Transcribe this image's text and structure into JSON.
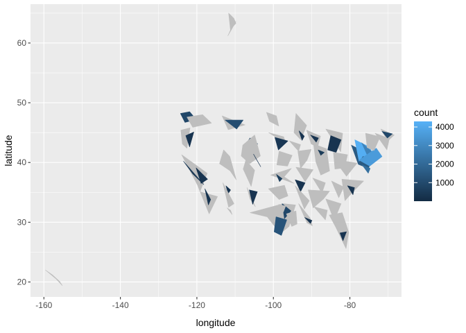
{
  "chart_data": {
    "type": "map",
    "xlabel": "longitude",
    "ylabel": "latitude",
    "xlim": [
      -163.5,
      -66.5
    ],
    "ylim": [
      17.5,
      66.5
    ],
    "x_ticks": [
      -160,
      -140,
      -120,
      -100,
      -80
    ],
    "y_ticks": [
      20,
      30,
      40,
      50,
      60
    ],
    "x_tick_labels": [
      "-160",
      "-140",
      "-120",
      "-100",
      "-80"
    ],
    "y_tick_labels": [
      "20",
      "30",
      "40",
      "50",
      "60"
    ],
    "grid": true,
    "legend": {
      "title": "count",
      "position": "right",
      "range": [
        1,
        4300
      ],
      "ticks": [
        1000,
        2000,
        3000,
        4000
      ],
      "tick_labels": [
        "1000",
        "2000",
        "3000",
        "4000"
      ],
      "low_color": "#132B43",
      "high_color": "#56B1F7"
    },
    "background_color": "#EBEBEB",
    "grid_color": "#FFFFFF",
    "na_color": "#BEBEBE",
    "shapes": [
      {
        "lon": [
          -111.7,
          -110.3,
          -109.8,
          -110.5,
          -111.2
        ],
        "lat": [
          65.0,
          64.1,
          63.3,
          62.8,
          62.0
        ],
        "count": null
      },
      {
        "lon": [
          -109.8,
          -110.9,
          -111.9
        ],
        "lat": [
          63.6,
          62.6,
          61.2
        ],
        "count": null
      },
      {
        "lon": [
          -159.6,
          -157.8,
          -155.9,
          -155.2,
          -156.8
        ],
        "lat": [
          22.0,
          21.2,
          20.1,
          19.4,
          20.5
        ],
        "count": null
      },
      {
        "lon": [
          -124.3,
          -121.9,
          -120.2,
          -123.1
        ],
        "lat": [
          48.2,
          48.5,
          47.2,
          46.7
        ],
        "count": 900
      },
      {
        "lon": [
          -122.6,
          -118.5,
          -116.2,
          -121.1
        ],
        "lat": [
          47.6,
          48.0,
          46.6,
          45.9
        ],
        "count": null
      },
      {
        "lon": [
          -124.2,
          -121.8,
          -122.6,
          -123.8
        ],
        "lat": [
          45.4,
          45.8,
          42.4,
          43.1
        ],
        "count": null
      },
      {
        "lon": [
          -122.9,
          -120.8,
          -121.9
        ],
        "lat": [
          44.5,
          45.1,
          42.6
        ],
        "count": 300
      },
      {
        "lon": [
          -124.0,
          -117.3,
          -119.2,
          -114.6,
          -116.8,
          -119.9
        ],
        "lat": [
          41.3,
          38.2,
          35.1,
          34.3,
          31.4,
          36.3
        ],
        "count": null
      },
      {
        "lon": [
          -123.5,
          -121.1,
          -118.2
        ],
        "lat": [
          40.2,
          38.1,
          36.3
        ],
        "count": 400
      },
      {
        "lon": [
          -120.2,
          -117.2,
          -118.9
        ],
        "lat": [
          39.1,
          37.2,
          36.5
        ],
        "count": 300
      },
      {
        "lon": [
          -117.9,
          -116.4,
          -117.0
        ],
        "lat": [
          35.6,
          33.8,
          32.9
        ],
        "count": 300
      },
      {
        "lon": [
          -113.4,
          -107.4,
          -111.8
        ],
        "lat": [
          47.8,
          46.3,
          45.5
        ],
        "count": null
      },
      {
        "lon": [
          -112.6,
          -107.9,
          -109.6
        ],
        "lat": [
          47.1,
          47.1,
          45.6
        ],
        "count": 1100
      },
      {
        "lon": [
          -107.8,
          -104.1,
          -106.1
        ],
        "lat": [
          42.5,
          43.1,
          44.1
        ],
        "count": 700
      },
      {
        "lon": [
          -108.0,
          -104.9,
          -103.4,
          -106.2,
          -108.4
        ],
        "lat": [
          42.9,
          44.6,
          41.1,
          39.8,
          41.1
        ],
        "count": null
      },
      {
        "lon": [
          -105.2,
          -104.5,
          -103.3
        ],
        "lat": [
          41.4,
          40.6,
          39.3
        ],
        "count": 300
      },
      {
        "lon": [
          -113.0,
          -111.4,
          -109.7,
          -111.3,
          -114.1
        ],
        "lat": [
          42.1,
          41.0,
          37.1,
          38.6,
          39.8
        ],
        "count": null
      },
      {
        "lon": [
          -112.4,
          -111.2,
          -111.8
        ],
        "lat": [
          36.1,
          35.4,
          34.8
        ],
        "count": 300
      },
      {
        "lon": [
          -113.2,
          -111.7,
          -110.3
        ],
        "lat": [
          36.6,
          32.5,
          33.1
        ],
        "count": null
      },
      {
        "lon": [
          -112.1,
          -111.2,
          -110.8
        ],
        "lat": [
          32.4,
          32.0,
          31.3
        ],
        "count": null
      },
      {
        "lon": [
          -107.2,
          -104.9,
          -105.8,
          -107.9
        ],
        "lat": [
          40.4,
          38.7,
          36.0,
          38.9
        ],
        "count": null
      },
      {
        "lon": [
          -106.9,
          -104.7,
          -106.1
        ],
        "lat": [
          35.8,
          32.6,
          33.9
        ],
        "count": null
      },
      {
        "lon": [
          -106.3,
          -104.2,
          -105.4
        ],
        "lat": [
          35.4,
          35.1,
          33.0
        ],
        "count": 300
      },
      {
        "lon": [
          -101.8,
          -99.2,
          -98.6,
          -101.0
        ],
        "lat": [
          48.4,
          47.8,
          46.1,
          46.9
        ],
        "count": null
      },
      {
        "lon": [
          -101.2,
          -97.3,
          -96.8
        ],
        "lat": [
          45.0,
          44.3,
          43.2
        ],
        "count": null
      },
      {
        "lon": [
          -99.6,
          -96.2,
          -98.7
        ],
        "lat": [
          44.2,
          43.6,
          42.1
        ],
        "count": 400
      },
      {
        "lon": [
          -98.5,
          -95.1,
          -96.3,
          -99.1
        ],
        "lat": [
          41.9,
          41.2,
          39.4,
          39.6
        ],
        "count": null
      },
      {
        "lon": [
          -100.7,
          -95.3,
          -97.2,
          -94.6
        ],
        "lat": [
          37.9,
          39.0,
          37.6,
          36.5
        ],
        "count": null
      },
      {
        "lon": [
          -99.2,
          -97.7,
          -98.4
        ],
        "lat": [
          38.0,
          37.3,
          36.8
        ],
        "count": 600
      },
      {
        "lon": [
          -101.3,
          -97.1,
          -96.2,
          -98.5
        ],
        "lat": [
          35.6,
          36.2,
          34.4,
          33.8
        ],
        "count": null
      },
      {
        "lon": [
          -106.1,
          -97.4,
          -94.2,
          -95.9,
          -98.2,
          -101.6
        ],
        "lat": [
          31.6,
          33.1,
          32.9,
          29.3,
          28.1,
          30.9
        ],
        "count": null
      },
      {
        "lon": [
          -97.7,
          -95.4,
          -97.1
        ],
        "lat": [
          33.1,
          31.9,
          30.6
        ],
        "count": 900
      },
      {
        "lon": [
          -99.3,
          -96.5,
          -97.9,
          -99.8
        ],
        "lat": [
          30.9,
          30.4,
          27.8,
          28.4
        ],
        "count": 1300
      },
      {
        "lon": [
          -98.6,
          -96.8,
          -97.4
        ],
        "lat": [
          33.0,
          32.7,
          31.7
        ],
        "count": null
      },
      {
        "lon": [
          -96.6,
          -94.1,
          -93.8,
          -95.2
        ],
        "lat": [
          31.4,
          31.9,
          29.7,
          29.3
        ],
        "count": null
      },
      {
        "lon": [
          -95.8,
          -92.9,
          -93.4
        ],
        "lat": [
          43.6,
          43.0,
          41.9
        ],
        "count": null
      },
      {
        "lon": [
          -94.1,
          -91.3,
          -92.8,
          -94.6
        ],
        "lat": [
          48.2,
          46.2,
          43.8,
          45.0
        ],
        "count": null
      },
      {
        "lon": [
          -93.3,
          -91.9,
          -92.5
        ],
        "lat": [
          45.3,
          44.4,
          43.7
        ],
        "count": 300
      },
      {
        "lon": [
          -93.6,
          -90.1,
          -91.2,
          -92.9
        ],
        "lat": [
          41.9,
          42.2,
          40.4,
          39.0
        ],
        "count": null
      },
      {
        "lon": [
          -94.1,
          -89.6,
          -91.7
        ],
        "lat": [
          39.2,
          38.8,
          36.8
        ],
        "count": null
      },
      {
        "lon": [
          -94.3,
          -91.7,
          -92.9
        ],
        "lat": [
          37.1,
          36.6,
          35.1
        ],
        "count": 300
      },
      {
        "lon": [
          -94.3,
          -90.6,
          -91.9
        ],
        "lat": [
          36.1,
          33.6,
          32.2
        ],
        "count": null
      },
      {
        "lon": [
          -93.4,
          -90.4,
          -89.8,
          -91.2
        ],
        "lat": [
          33.1,
          30.7,
          29.4,
          29.9
        ],
        "count": null
      },
      {
        "lon": [
          -91.8,
          -89.9,
          -90.3
        ],
        "lat": [
          30.8,
          30.3,
          29.8
        ],
        "count": 300
      },
      {
        "lon": [
          -91.3,
          -87.7,
          -88.4,
          -90.1
        ],
        "lat": [
          45.4,
          44.4,
          42.6,
          43.1
        ],
        "count": null
      },
      {
        "lon": [
          -90.3,
          -88.2,
          -88.8
        ],
        "lat": [
          44.6,
          44.1,
          43.4
        ],
        "count": 300
      },
      {
        "lon": [
          -89.5,
          -86.1,
          -85.3,
          -87.6,
          -88.9
        ],
        "lat": [
          43.1,
          42.3,
          38.6,
          37.9,
          40.1
        ],
        "count": null
      },
      {
        "lon": [
          -88.3,
          -86.7,
          -87.6
        ],
        "lat": [
          42.1,
          41.7,
          41.2
        ],
        "count": 500
      },
      {
        "lon": [
          -89.7,
          -86.4,
          -87.3
        ],
        "lat": [
          37.4,
          36.6,
          34.9
        ],
        "count": null
      },
      {
        "lon": [
          -90.9,
          -85.3,
          -86.9,
          -89.6
        ],
        "lat": [
          35.4,
          35.2,
          33.9,
          32.4
        ],
        "count": null
      },
      {
        "lon": [
          -89.4,
          -85.9,
          -86.4
        ],
        "lat": [
          32.6,
          32.0,
          30.4
        ],
        "count": null
      },
      {
        "lon": [
          -86.3,
          -82.3,
          -84.1
        ],
        "lat": [
          33.9,
          33.1,
          30.3
        ],
        "count": null
      },
      {
        "lon": [
          -85.4,
          -82.0,
          -80.3,
          -81.0,
          -83.7
        ],
        "lat": [
          31.2,
          31.6,
          28.3,
          25.6,
          29.2
        ],
        "count": null
      },
      {
        "lon": [
          -82.6,
          -80.9,
          -81.8
        ],
        "lat": [
          28.2,
          28.4,
          26.9
        ],
        "count": 300
      },
      {
        "lon": [
          -84.8,
          -81.6,
          -82.9
        ],
        "lat": [
          36.9,
          35.9,
          34.1
        ],
        "count": null
      },
      {
        "lon": [
          -86.3,
          -81.9,
          -82.4
        ],
        "lat": [
          45.6,
          44.9,
          41.8
        ],
        "count": null
      },
      {
        "lon": [
          -85.0,
          -82.3,
          -83.6,
          -85.8
        ],
        "lat": [
          44.5,
          43.8,
          41.7,
          42.1
        ],
        "count": 300
      },
      {
        "lon": [
          -84.3,
          -80.6,
          -81.4,
          -83.9
        ],
        "lat": [
          41.7,
          41.3,
          39.1,
          38.9
        ],
        "count": null
      },
      {
        "lon": [
          -84.1,
          -78.1,
          -80.9
        ],
        "lat": [
          40.5,
          39.9,
          37.7
        ],
        "count": null
      },
      {
        "lon": [
          -82.1,
          -76.4,
          -79.2,
          -81.3
        ],
        "lat": [
          37.2,
          36.9,
          35.1,
          33.6
        ],
        "count": null
      },
      {
        "lon": [
          -80.6,
          -78.8,
          -79.2
        ],
        "lat": [
          36.1,
          35.8,
          34.6
        ],
        "count": 300
      },
      {
        "lon": [
          -79.6,
          -74.2,
          -75.1,
          -77.8
        ],
        "lat": [
          42.9,
          41.1,
          39.0,
          39.7
        ],
        "count": 1500
      },
      {
        "lon": [
          -78.7,
          -74.9,
          -73.4,
          -76.6,
          -77.6
        ],
        "lat": [
          43.8,
          42.6,
          40.6,
          41.1,
          40.2
        ],
        "count": 4200
      },
      {
        "lon": [
          -76.9,
          -74.2,
          -75.3
        ],
        "lat": [
          43.3,
          41.8,
          41.0
        ],
        "count": 2800
      },
      {
        "lon": [
          -77.6,
          -73.1,
          -71.6,
          -74.8
        ],
        "lat": [
          40.4,
          42.4,
          41.0,
          39.4
        ],
        "count": 3600
      },
      {
        "lon": [
          -76.8,
          -74.7,
          -75.2
        ],
        "lat": [
          39.6,
          39.0,
          38.2
        ],
        "count": 2200
      },
      {
        "lon": [
          -75.9,
          -72.1,
          -73.7,
          -75.5
        ],
        "lat": [
          44.9,
          44.3,
          42.0,
          42.5
        ],
        "count": null
      },
      {
        "lon": [
          -73.4,
          -69.7,
          -70.3
        ],
        "lat": [
          44.9,
          44.0,
          42.1
        ],
        "count": null
      },
      {
        "lon": [
          -71.9,
          -68.4,
          -70.1
        ],
        "lat": [
          45.6,
          44.6,
          43.6
        ],
        "count": null
      },
      {
        "lon": [
          -71.6,
          -68.9,
          -70.2
        ],
        "lat": [
          45.2,
          44.8,
          44.1
        ],
        "count": 900
      }
    ]
  }
}
